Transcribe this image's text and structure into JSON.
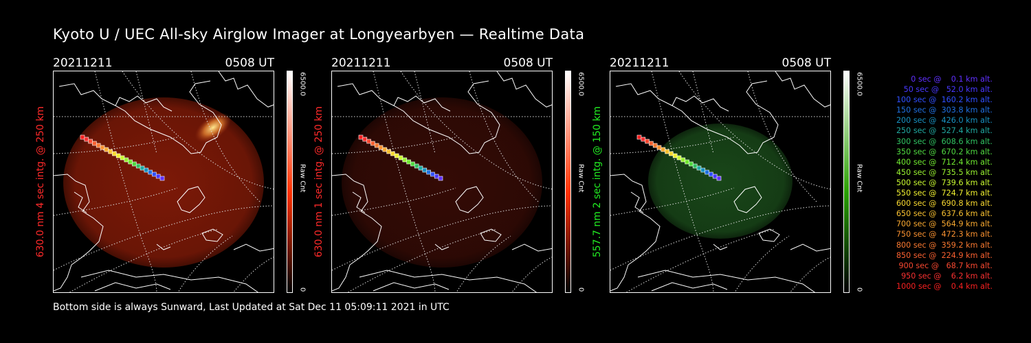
{
  "title": "Kyoto U / UEC All-sky Airglow Imager at Longyearbyen — Realtime Data",
  "footer": "Bottom side is always Sunward, Last Updated at Sat Dec 11 05:09:11 2021 in UTC",
  "panels": [
    {
      "date": "20211211",
      "time": "0508 UT",
      "side_label": "630.0 nm 4 sec intg. @ 250 km",
      "label_color": "#ff2a2a",
      "cbar_max": "6500.0",
      "cbar_unit": "Raw Cnt",
      "cbar_min": "0",
      "cbar_color": "#ff3000",
      "glow_color": "#8a1c08",
      "glow_opacity": 0.9,
      "aurora": true
    },
    {
      "date": "20211211",
      "time": "0508 UT",
      "side_label": "630.0 nm 1 sec intg. @ 250 km",
      "label_color": "#ff2a2a",
      "cbar_max": "6500.0",
      "cbar_unit": "Raw Cnt",
      "cbar_min": "0",
      "cbar_color": "#ff3000",
      "glow_color": "#3a0c06",
      "glow_opacity": 0.9,
      "aurora": false
    },
    {
      "date": "20211211",
      "time": "0508 UT",
      "side_label": "557.7 nm 2 sec intg. @ 150 km",
      "label_color": "#22ee22",
      "cbar_max": "6500.0",
      "cbar_unit": "Raw Cnt",
      "cbar_min": "0",
      "cbar_color": "#2aa000",
      "glow_color": "#1a4a1a",
      "glow_opacity": 0.95,
      "aurora": false
    }
  ],
  "legend": [
    {
      "text": "0 sec @    0.1 km alt.",
      "color": "#6030ff"
    },
    {
      "text": "50 sec @   52.0 km alt.",
      "color": "#4838ff"
    },
    {
      "text": "100 sec @  160.2 km alt.",
      "color": "#3050ff"
    },
    {
      "text": "150 sec @  303.8 km alt.",
      "color": "#2070e0"
    },
    {
      "text": "200 sec @  426.0 km alt.",
      "color": "#1890c0"
    },
    {
      "text": "250 sec @  527.4 km alt.",
      "color": "#20a8a0"
    },
    {
      "text": "300 sec @  608.6 km alt.",
      "color": "#30c060"
    },
    {
      "text": "350 sec @  670.2 km alt.",
      "color": "#50d840"
    },
    {
      "text": "400 sec @  712.4 km alt.",
      "color": "#70e830"
    },
    {
      "text": "450 sec @  735.5 km alt.",
      "color": "#98f030"
    },
    {
      "text": "500 sec @  739.6 km alt.",
      "color": "#c8f830"
    },
    {
      "text": "550 sec @  724.7 km alt.",
      "color": "#f0f030"
    },
    {
      "text": "600 sec @  690.8 km alt.",
      "color": "#f8d830"
    },
    {
      "text": "650 sec @  637.6 km alt.",
      "color": "#f8c030"
    },
    {
      "text": "700 sec @  564.9 km alt.",
      "color": "#f8a830"
    },
    {
      "text": "750 sec @  472.3 km alt.",
      "color": "#f89030"
    },
    {
      "text": "800 sec @  359.2 km alt.",
      "color": "#f87830"
    },
    {
      "text": "850 sec @  224.9 km alt.",
      "color": "#f86030"
    },
    {
      "text": "900 sec @   68.7 km alt.",
      "color": "#f84830"
    },
    {
      "text": "950 sec @    6.2 km alt.",
      "color": "#f83030"
    },
    {
      "text": "1000 sec @    0.4 km alt.",
      "color": "#f82020"
    }
  ]
}
